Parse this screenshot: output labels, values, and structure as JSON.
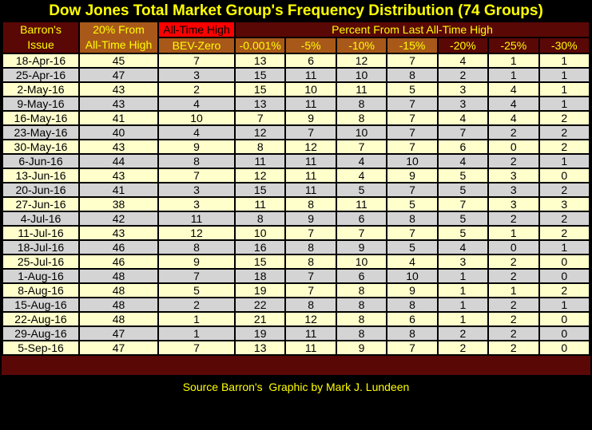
{
  "title": "Dow Jones Total Market Group's Frequency Distribution (74 Groups)",
  "footer": {
    "text": "Source Barron's  Graphic by Mark J. Lundeen"
  },
  "colors": {
    "background": "#000000",
    "maroon_header": "#5A0806",
    "orange_header": "#A8591A",
    "red_highlight": "#FF0000",
    "row_cream": "#FFFFCC",
    "row_gray": "#D4D4D4",
    "accent_text": "#FFFF00",
    "cell_text": "#000000"
  },
  "chart_data": {
    "type": "table",
    "title": "Dow Jones Total Market Group's Frequency Distribution (74 Groups)",
    "header": {
      "issue_line1": "Barron's",
      "issue_line2": "Issue",
      "from_high_line1": "20% From",
      "from_high_line2": "All-Time High",
      "all_time_high": "All-Time High",
      "bev_zero": "BEV-Zero",
      "percent_group": "Percent From Last All-Time High",
      "percent_columns": [
        "-0.001%",
        "-5%",
        "-10%",
        "-15%",
        "-20%",
        "-25%",
        "-30%"
      ]
    },
    "rows": [
      {
        "date": "18-Apr-16",
        "values": [
          45,
          7,
          13,
          6,
          12,
          7,
          4,
          1,
          1
        ]
      },
      {
        "date": "25-Apr-16",
        "values": [
          47,
          3,
          15,
          11,
          10,
          8,
          2,
          1,
          1
        ]
      },
      {
        "date": "2-May-16",
        "values": [
          43,
          2,
          15,
          10,
          11,
          5,
          3,
          4,
          1
        ]
      },
      {
        "date": "9-May-16",
        "values": [
          43,
          4,
          13,
          11,
          8,
          7,
          3,
          4,
          1
        ]
      },
      {
        "date": "16-May-16",
        "values": [
          41,
          10,
          7,
          9,
          8,
          7,
          4,
          4,
          2
        ]
      },
      {
        "date": "23-May-16",
        "values": [
          40,
          4,
          12,
          7,
          10,
          7,
          7,
          2,
          2
        ]
      },
      {
        "date": "30-May-16",
        "values": [
          43,
          9,
          8,
          12,
          7,
          7,
          6,
          0,
          2
        ]
      },
      {
        "date": "6-Jun-16",
        "values": [
          44,
          8,
          11,
          11,
          4,
          10,
          4,
          2,
          1
        ]
      },
      {
        "date": "13-Jun-16",
        "values": [
          43,
          7,
          12,
          11,
          4,
          9,
          5,
          3,
          0
        ]
      },
      {
        "date": "20-Jun-16",
        "values": [
          41,
          3,
          15,
          11,
          5,
          7,
          5,
          3,
          2
        ]
      },
      {
        "date": "27-Jun-16",
        "values": [
          38,
          3,
          11,
          8,
          11,
          5,
          7,
          3,
          3
        ]
      },
      {
        "date": "4-Jul-16",
        "values": [
          42,
          11,
          8,
          9,
          6,
          8,
          5,
          2,
          2
        ]
      },
      {
        "date": "11-Jul-16",
        "values": [
          43,
          12,
          10,
          7,
          7,
          7,
          5,
          1,
          2
        ]
      },
      {
        "date": "18-Jul-16",
        "values": [
          46,
          8,
          16,
          8,
          9,
          5,
          4,
          0,
          1
        ]
      },
      {
        "date": "25-Jul-16",
        "values": [
          46,
          9,
          15,
          8,
          10,
          4,
          3,
          2,
          0
        ]
      },
      {
        "date": "1-Aug-16",
        "values": [
          48,
          7,
          18,
          7,
          6,
          10,
          1,
          2,
          0
        ]
      },
      {
        "date": "8-Aug-16",
        "values": [
          48,
          5,
          19,
          7,
          8,
          9,
          1,
          1,
          2
        ]
      },
      {
        "date": "15-Aug-16",
        "values": [
          48,
          2,
          22,
          8,
          8,
          8,
          1,
          2,
          1
        ]
      },
      {
        "date": "22-Aug-16",
        "values": [
          48,
          1,
          21,
          12,
          8,
          6,
          1,
          2,
          0
        ]
      },
      {
        "date": "29-Aug-16",
        "values": [
          47,
          1,
          19,
          11,
          8,
          8,
          2,
          2,
          0
        ]
      },
      {
        "date": "5-Sep-16",
        "values": [
          47,
          7,
          13,
          11,
          9,
          7,
          2,
          2,
          0
        ]
      }
    ]
  }
}
